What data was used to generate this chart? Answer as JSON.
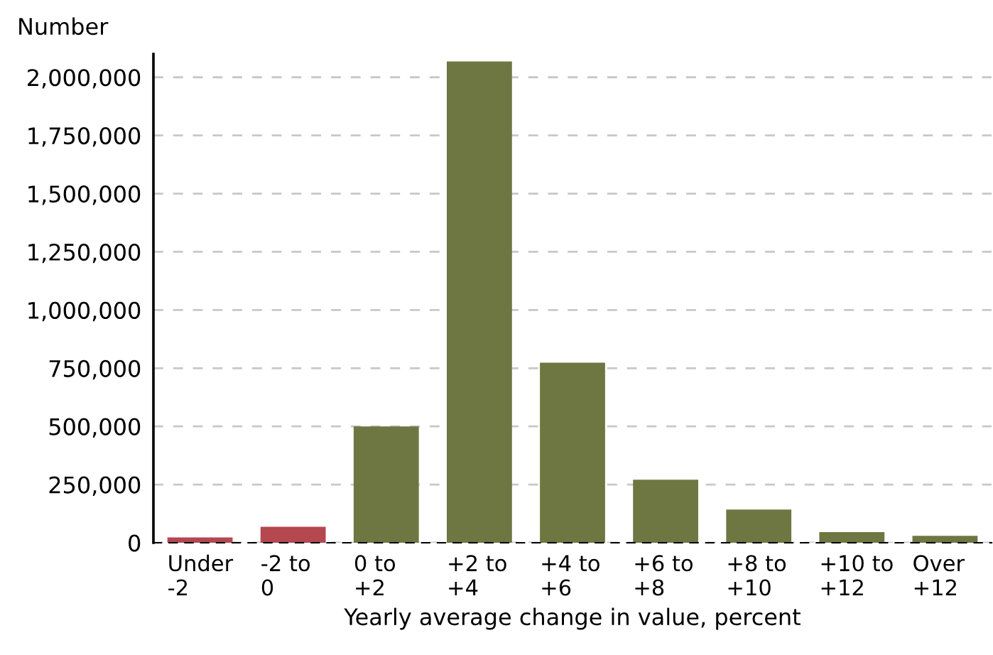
{
  "chart_data": {
    "type": "bar",
    "ylabel": "Number",
    "xlabel": "Yearly average change in value, percent",
    "categories": [
      "Under\n-2",
      "-2 to\n0",
      "0 to\n+2",
      "+2 to\n+4",
      "+4 to\n+6",
      "+6 to\n+8",
      "+8 to\n+10",
      "+10 to\n+12",
      "Over\n+12"
    ],
    "values": [
      23000,
      69000,
      500000,
      2068000,
      774000,
      271000,
      143000,
      46000,
      30000
    ],
    "colors": [
      "#b5474f",
      "#b5474f",
      "#6e7742",
      "#6e7742",
      "#6e7742",
      "#6e7742",
      "#6e7742",
      "#6e7742",
      "#6e7742"
    ],
    "ylim": [
      0,
      2100000
    ],
    "yticks": [
      {
        "value": 0,
        "label": "0"
      },
      {
        "value": 250000,
        "label": "250,000"
      },
      {
        "value": 500000,
        "label": "500,000"
      },
      {
        "value": 750000,
        "label": "750,000"
      },
      {
        "value": 1000000,
        "label": "1,000,000"
      },
      {
        "value": 1250000,
        "label": "1,250,000"
      },
      {
        "value": 1500000,
        "label": "1,500,000"
      },
      {
        "value": 1750000,
        "label": "1,750,000"
      },
      {
        "value": 2000000,
        "label": "2,000,000"
      }
    ],
    "grid": "y"
  }
}
